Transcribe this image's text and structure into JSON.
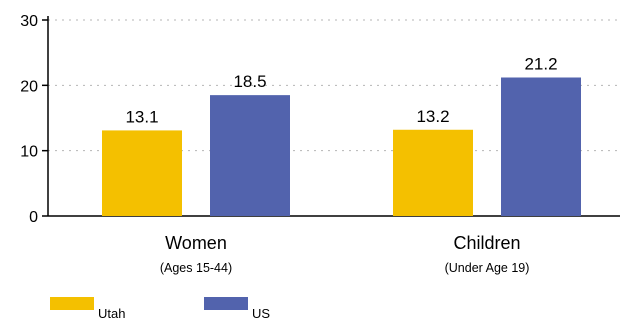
{
  "chart_data": {
    "type": "bar",
    "categories": [
      {
        "label": "Women",
        "sublabel": "(Ages 15-44)"
      },
      {
        "label": "Children",
        "sublabel": "(Under Age 19)"
      }
    ],
    "series": [
      {
        "name": "Utah",
        "values": [
          13.1,
          13.2
        ],
        "value_labels": [
          "13.1",
          "13.2"
        ],
        "color": "#f4c000"
      },
      {
        "name": "US",
        "values": [
          18.5,
          21.2
        ],
        "value_labels": [
          "18.5",
          "21.2"
        ],
        "color": "#5263ad"
      }
    ],
    "y_ticks": [
      0,
      10,
      20,
      30
    ],
    "ylim": [
      0,
      30
    ],
    "grid": true,
    "legend_position": "bottom-left"
  }
}
